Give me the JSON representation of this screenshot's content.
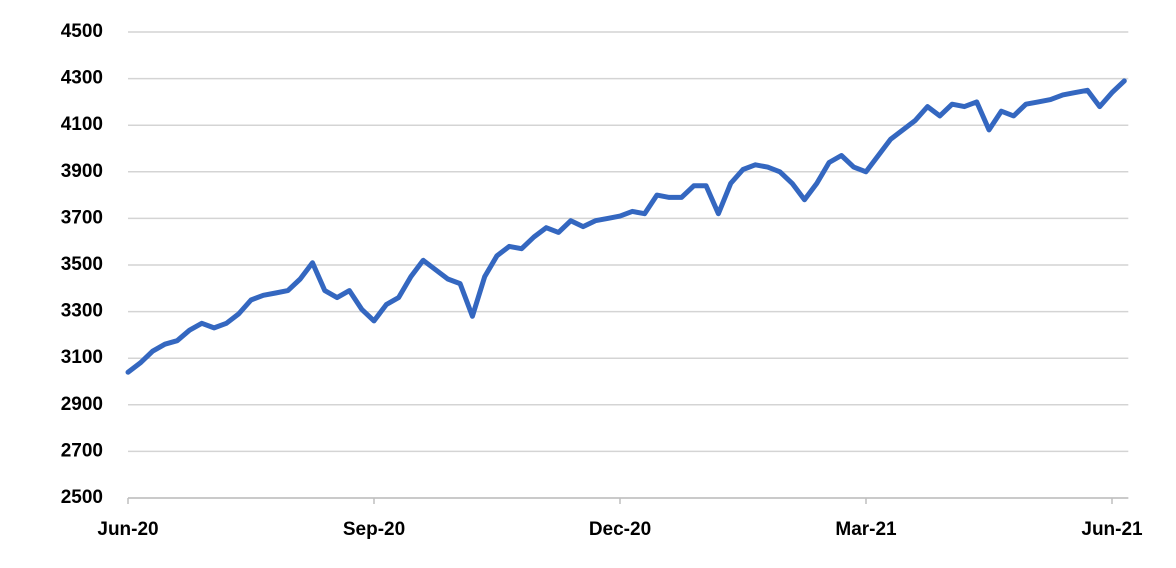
{
  "chart_data": {
    "type": "line",
    "categories": [
      "Jun-20",
      null,
      null,
      null,
      null,
      null,
      null,
      null,
      null,
      null,
      null,
      null,
      null,
      null,
      null,
      null,
      null,
      null,
      null,
      null,
      "Sep-20",
      null,
      null,
      null,
      null,
      null,
      null,
      null,
      null,
      null,
      null,
      null,
      null,
      null,
      null,
      null,
      null,
      null,
      null,
      null,
      "Dec-20",
      null,
      null,
      null,
      null,
      null,
      null,
      null,
      null,
      null,
      null,
      null,
      null,
      null,
      null,
      null,
      null,
      null,
      null,
      null,
      "Mar-21",
      null,
      null,
      null,
      null,
      null,
      null,
      null,
      null,
      null,
      null,
      null,
      null,
      null,
      null,
      null,
      null,
      null,
      null,
      null,
      "Jun-21",
      null
    ],
    "values": [
      3040,
      3080,
      3130,
      3160,
      3175,
      3220,
      3250,
      3230,
      3250,
      3290,
      3350,
      3370,
      3380,
      3390,
      3440,
      3510,
      3390,
      3360,
      3390,
      3310,
      3260,
      3330,
      3360,
      3450,
      3520,
      3480,
      3440,
      3420,
      3280,
      3450,
      3540,
      3580,
      3570,
      3620,
      3660,
      3640,
      3690,
      3665,
      3690,
      3700,
      3710,
      3730,
      3720,
      3800,
      3790,
      3790,
      3840,
      3840,
      3720,
      3850,
      3910,
      3930,
      3920,
      3900,
      3850,
      3780,
      3850,
      3940,
      3970,
      3920,
      3900,
      3970,
      4040,
      4080,
      4120,
      4180,
      4140,
      4190,
      4180,
      4200,
      4080,
      4160,
      4140,
      4190,
      4200,
      4210,
      4230,
      4240,
      4250,
      4180,
      4240,
      4290
    ],
    "color": "#3467c0",
    "ylim": [
      2500,
      4500
    ],
    "yticks": [
      2500,
      2700,
      2900,
      3100,
      3300,
      3500,
      3700,
      3900,
      4100,
      4300,
      4500
    ],
    "grid": true
  }
}
